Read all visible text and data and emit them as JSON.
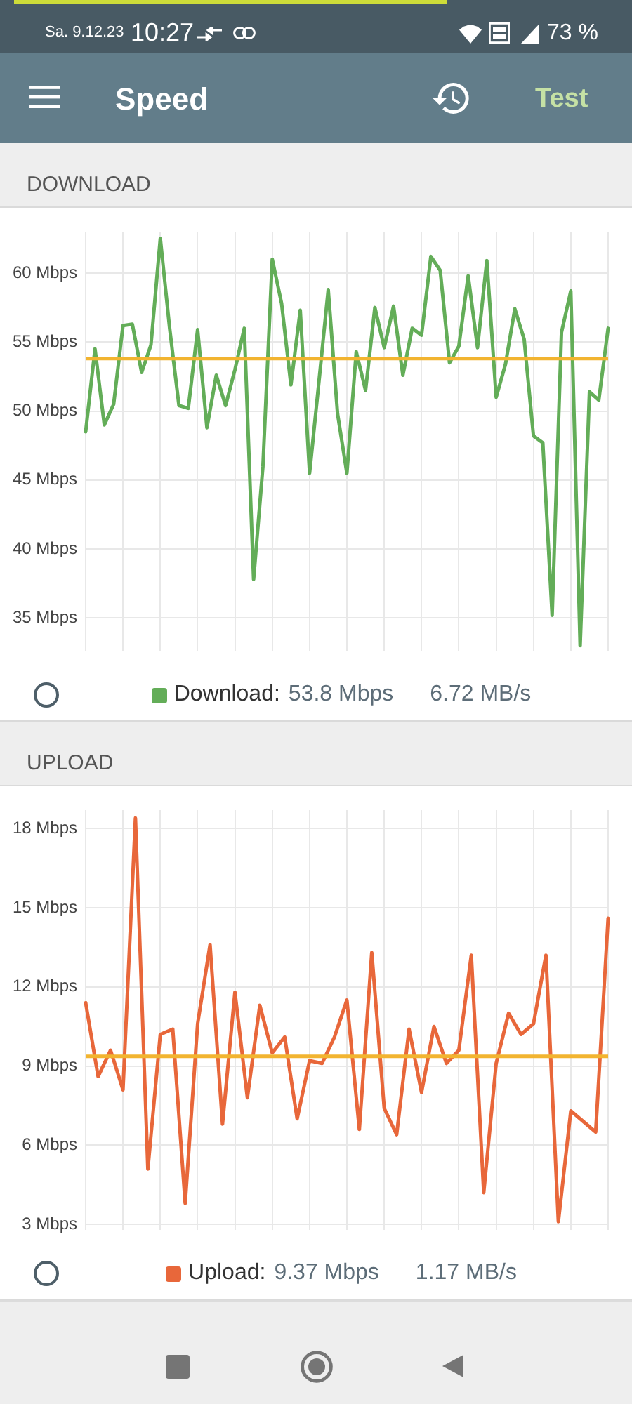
{
  "chart_data": [
    {
      "type": "other",
      "title": "Speed",
      "annotations": [
        "Sa. 9.12.23",
        "10:27",
        "73 %",
        "Test"
      ]
    },
    {
      "type": "line",
      "title": "DOWNLOAD",
      "categories": [
        null,
        null,
        null,
        null,
        null,
        null,
        null,
        null,
        null,
        null,
        null,
        null,
        null,
        null,
        null,
        null,
        null,
        null,
        null,
        null,
        null,
        null,
        null,
        null,
        null,
        null,
        null,
        null,
        null,
        null,
        null,
        null,
        null,
        null,
        null,
        null,
        null,
        null,
        null,
        null,
        null,
        null,
        null,
        null,
        null,
        null,
        null,
        null,
        null,
        null,
        null,
        null,
        null,
        null,
        null,
        null,
        null
      ],
      "series": [
        {
          "name": "Download:",
          "color": "#63ad58",
          "values": [
            48.5,
            54.5,
            49.0,
            50.5,
            56.2,
            56.3,
            52.8,
            54.8,
            62.5,
            56.0,
            50.4,
            50.2,
            55.9,
            48.8,
            52.6,
            50.4,
            53.0,
            56.0,
            37.8,
            46.0,
            61.0,
            57.8,
            51.9,
            57.3,
            45.5,
            52.1,
            58.8,
            49.8,
            45.5,
            54.3,
            51.5,
            57.5,
            54.6,
            57.6,
            52.6,
            56.0,
            55.5,
            61.2,
            60.2,
            53.5,
            54.7,
            59.8,
            54.6,
            60.9,
            51.0,
            53.4,
            57.4,
            55.2,
            48.2,
            47.7,
            35.2,
            55.7,
            58.7,
            33.0,
            51.4,
            50.8,
            56.0
          ]
        }
      ],
      "ylim": [
        32.6,
        63
      ],
      "yticks": [
        {
          "value": 35,
          "label": "35 Mbps"
        },
        {
          "value": 40,
          "label": "40 Mbps"
        },
        {
          "value": 45,
          "label": "45 Mbps"
        },
        {
          "value": 50,
          "label": "50 Mbps"
        },
        {
          "value": 55,
          "label": "55 Mbps"
        },
        {
          "value": 60,
          "label": "60 Mbps"
        }
      ],
      "grid": true,
      "legend": "bottom",
      "ref_lines": [
        {
          "axis": "y",
          "value": 53.8,
          "color": "#f2b430"
        }
      ],
      "annotations": [
        "53.8 Mbps",
        "6.72 MB/s"
      ]
    },
    {
      "type": "line",
      "title": "UPLOAD",
      "categories": [
        null,
        null,
        null,
        null,
        null,
        null,
        null,
        null,
        null,
        null,
        null,
        null,
        null,
        null,
        null,
        null,
        null,
        null,
        null,
        null,
        null,
        null,
        null,
        null,
        null,
        null,
        null,
        null,
        null,
        null,
        null,
        null,
        null,
        null,
        null,
        null,
        null,
        null,
        null,
        null,
        null,
        null,
        null
      ],
      "series": [
        {
          "name": "Upload:",
          "color": "#e8673a",
          "values": [
            11.4,
            8.6,
            9.6,
            8.1,
            18.4,
            5.1,
            10.2,
            10.4,
            3.8,
            10.6,
            13.6,
            6.8,
            11.8,
            7.8,
            11.3,
            9.5,
            10.1,
            7.0,
            9.2,
            9.1,
            10.1,
            11.5,
            6.6,
            13.3,
            7.4,
            6.4,
            10.4,
            8.0,
            10.5,
            9.1,
            9.6,
            13.2,
            4.2,
            9.1,
            11.0,
            10.2,
            10.6,
            13.2,
            3.1,
            7.3,
            6.9,
            6.5,
            14.6
          ]
        }
      ],
      "ylim": [
        2.8,
        18.7
      ],
      "yticks": [
        {
          "value": 3,
          "label": "3 Mbps"
        },
        {
          "value": 6,
          "label": "6 Mbps"
        },
        {
          "value": 9,
          "label": "9 Mbps"
        },
        {
          "value": 12,
          "label": "12 Mbps"
        },
        {
          "value": 15,
          "label": "15 Mbps"
        },
        {
          "value": 18,
          "label": "18 Mbps"
        }
      ],
      "grid": true,
      "legend": "bottom",
      "ref_lines": [
        {
          "axis": "y",
          "value": 9.37,
          "color": "#f2b430"
        }
      ],
      "annotations": [
        "9.37 Mbps",
        "1.17 MB/s"
      ]
    }
  ]
}
